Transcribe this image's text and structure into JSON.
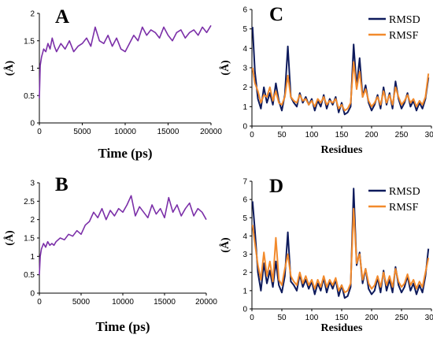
{
  "colors": {
    "purple": "#7b2fa8",
    "navy": "#0d1a5c",
    "orange": "#f28a2c"
  },
  "chart_data": [
    {
      "panel": "A",
      "type": "line",
      "xlabel": "Time (ps)",
      "ylabel": "(Å)",
      "xlim": [
        0,
        20000
      ],
      "ylim": [
        0,
        2
      ],
      "xticks": [
        0,
        5000,
        10000,
        15000,
        20000
      ],
      "yticks": [
        0,
        0.5,
        1,
        1.5,
        2
      ],
      "grid": false,
      "series": [
        {
          "color": "#7b2fa8",
          "x": [
            0,
            100,
            250,
            500,
            750,
            1000,
            1250,
            1500,
            1750,
            2000,
            2500,
            3000,
            3500,
            4000,
            4500,
            5000,
            5500,
            6000,
            6500,
            7000,
            7500,
            8000,
            8500,
            9000,
            9500,
            10000,
            10500,
            11000,
            11500,
            12000,
            12500,
            13000,
            13500,
            14000,
            14500,
            15000,
            15500,
            16000,
            16500,
            17000,
            17500,
            18000,
            18500,
            19000,
            19500,
            20000
          ],
          "y": [
            0.45,
            1.05,
            1.2,
            1.35,
            1.3,
            1.45,
            1.35,
            1.55,
            1.4,
            1.3,
            1.45,
            1.35,
            1.5,
            1.3,
            1.4,
            1.45,
            1.55,
            1.4,
            1.75,
            1.5,
            1.45,
            1.6,
            1.4,
            1.55,
            1.35,
            1.3,
            1.45,
            1.6,
            1.5,
            1.75,
            1.6,
            1.7,
            1.65,
            1.55,
            1.75,
            1.6,
            1.5,
            1.65,
            1.7,
            1.55,
            1.65,
            1.7,
            1.6,
            1.75,
            1.65,
            1.78
          ]
        }
      ]
    },
    {
      "panel": "B",
      "type": "line",
      "xlabel": "Time (ps)",
      "ylabel": "(Å)",
      "xlim": [
        0,
        20000
      ],
      "ylim": [
        0,
        3
      ],
      "xticks": [
        0,
        5000,
        10000,
        15000,
        20000
      ],
      "yticks": [
        0,
        0.5,
        1,
        1.5,
        2,
        2.5,
        3
      ],
      "grid": false,
      "series": [
        {
          "color": "#7b2fa8",
          "x": [
            0,
            100,
            250,
            500,
            750,
            1000,
            1250,
            1500,
            1750,
            2000,
            2500,
            3000,
            3500,
            4000,
            4500,
            5000,
            5500,
            6000,
            6500,
            7000,
            7500,
            8000,
            8500,
            9000,
            9500,
            10000,
            10500,
            11000,
            11500,
            12000,
            12500,
            13000,
            13500,
            14000,
            14500,
            15000,
            15500,
            16000,
            16500,
            17000,
            17500,
            18000,
            18500,
            19000,
            19500,
            20000
          ],
          "y": [
            0.5,
            1.0,
            1.2,
            1.35,
            1.25,
            1.4,
            1.3,
            1.35,
            1.3,
            1.4,
            1.5,
            1.45,
            1.6,
            1.55,
            1.7,
            1.6,
            1.85,
            1.95,
            2.2,
            2.05,
            2.3,
            2.0,
            2.25,
            2.1,
            2.3,
            2.2,
            2.4,
            2.65,
            2.1,
            2.35,
            2.2,
            2.05,
            2.4,
            2.15,
            2.3,
            2.05,
            2.6,
            2.2,
            2.4,
            2.1,
            2.3,
            2.45,
            2.1,
            2.3,
            2.2,
            2.0
          ]
        }
      ]
    },
    {
      "panel": "C",
      "type": "line",
      "xlabel": "Residues",
      "ylabel": "(Å)",
      "xlim": [
        0,
        300
      ],
      "ylim": [
        0,
        6
      ],
      "xticks": [
        0,
        50,
        100,
        150,
        200,
        250,
        300
      ],
      "yticks": [
        0,
        1,
        2,
        3,
        4,
        5,
        6
      ],
      "grid": false,
      "legend": "top-right",
      "series": [
        {
          "name": "RMSD",
          "color": "#0d1a5c",
          "x": [
            1,
            5,
            10,
            15,
            20,
            25,
            30,
            35,
            40,
            45,
            50,
            55,
            60,
            65,
            70,
            75,
            80,
            85,
            90,
            95,
            100,
            105,
            110,
            115,
            120,
            125,
            130,
            135,
            140,
            145,
            150,
            155,
            160,
            165,
            170,
            175,
            180,
            185,
            190,
            195,
            200,
            205,
            210,
            215,
            220,
            225,
            230,
            235,
            240,
            245,
            250,
            255,
            260,
            265,
            270,
            275,
            280,
            285,
            290,
            295
          ],
          "y": [
            5.1,
            2.8,
            1.4,
            0.9,
            2.0,
            1.2,
            1.7,
            1.1,
            2.2,
            1.3,
            0.8,
            1.6,
            4.1,
            1.5,
            1.2,
            1.0,
            1.7,
            1.2,
            1.5,
            1.1,
            1.4,
            0.8,
            1.3,
            1.0,
            1.6,
            0.9,
            1.4,
            1.1,
            1.5,
            0.7,
            1.2,
            0.6,
            0.7,
            1.0,
            4.2,
            2.0,
            3.5,
            1.5,
            2.1,
            1.2,
            0.8,
            1.1,
            1.6,
            0.9,
            2.0,
            1.1,
            1.7,
            0.9,
            2.3,
            1.4,
            0.9,
            1.2,
            1.7,
            1.0,
            1.3,
            0.8,
            1.2,
            0.9,
            1.4,
            2.5
          ]
        },
        {
          "name": "RMSF",
          "color": "#f28a2c",
          "x": [
            1,
            5,
            10,
            15,
            20,
            25,
            30,
            35,
            40,
            45,
            50,
            55,
            60,
            65,
            70,
            75,
            80,
            85,
            90,
            95,
            100,
            105,
            110,
            115,
            120,
            125,
            130,
            135,
            140,
            145,
            150,
            155,
            160,
            165,
            170,
            175,
            180,
            185,
            190,
            195,
            200,
            205,
            210,
            215,
            220,
            225,
            230,
            235,
            240,
            245,
            250,
            255,
            260,
            265,
            270,
            275,
            280,
            285,
            290,
            295
          ],
          "y": [
            3.0,
            2.2,
            1.8,
            1.2,
            1.6,
            1.5,
            2.0,
            1.3,
            1.8,
            1.2,
            1.1,
            1.5,
            2.6,
            1.5,
            1.3,
            1.2,
            1.6,
            1.3,
            1.4,
            1.1,
            1.3,
            1.0,
            1.4,
            1.2,
            1.5,
            1.1,
            1.3,
            1.2,
            1.4,
            0.9,
            1.1,
            0.8,
            0.9,
            1.2,
            3.3,
            1.9,
            2.8,
            1.5,
            1.9,
            1.3,
            1.0,
            1.2,
            1.5,
            1.1,
            1.8,
            1.2,
            1.6,
            1.1,
            2.0,
            1.5,
            1.1,
            1.3,
            1.6,
            1.2,
            1.4,
            1.0,
            1.3,
            1.1,
            1.5,
            2.7
          ]
        }
      ]
    },
    {
      "panel": "D",
      "type": "line",
      "xlabel": "Residues",
      "ylabel": "(Å)",
      "xlim": [
        0,
        300
      ],
      "ylim": [
        0,
        7
      ],
      "xticks": [
        0,
        50,
        100,
        150,
        200,
        250,
        300
      ],
      "yticks": [
        0,
        1,
        2,
        3,
        4,
        5,
        6,
        7
      ],
      "grid": false,
      "legend": "top-right",
      "series": [
        {
          "name": "RMSD",
          "color": "#0d1a5c",
          "x": [
            1,
            5,
            10,
            15,
            20,
            25,
            30,
            35,
            40,
            45,
            50,
            55,
            60,
            65,
            70,
            75,
            80,
            85,
            90,
            95,
            100,
            105,
            110,
            115,
            120,
            125,
            130,
            135,
            140,
            145,
            150,
            155,
            160,
            165,
            170,
            175,
            180,
            185,
            190,
            195,
            200,
            205,
            210,
            215,
            220,
            225,
            230,
            235,
            240,
            245,
            250,
            255,
            260,
            265,
            270,
            275,
            280,
            285,
            290,
            295
          ],
          "y": [
            5.9,
            4.3,
            2.0,
            1.0,
            2.5,
            1.4,
            2.1,
            1.2,
            2.6,
            1.3,
            0.9,
            1.8,
            4.2,
            1.5,
            1.3,
            1.0,
            1.9,
            1.2,
            1.6,
            1.1,
            1.5,
            0.8,
            1.4,
            1.0,
            1.7,
            0.9,
            1.5,
            1.1,
            1.6,
            0.7,
            1.3,
            0.6,
            0.7,
            1.2,
            6.6,
            2.4,
            3.1,
            1.4,
            2.2,
            1.1,
            0.8,
            1.0,
            1.7,
            0.9,
            2.1,
            1.0,
            1.6,
            0.9,
            2.3,
            1.3,
            0.9,
            1.2,
            1.8,
            1.0,
            1.4,
            0.8,
            1.3,
            0.9,
            1.8,
            3.3
          ]
        },
        {
          "name": "RMSF",
          "color": "#f28a2c",
          "x": [
            1,
            5,
            10,
            15,
            20,
            25,
            30,
            35,
            40,
            45,
            50,
            55,
            60,
            65,
            70,
            75,
            80,
            85,
            90,
            95,
            100,
            105,
            110,
            115,
            120,
            125,
            130,
            135,
            140,
            145,
            150,
            155,
            160,
            165,
            170,
            175,
            180,
            185,
            190,
            195,
            200,
            205,
            210,
            215,
            220,
            225,
            230,
            235,
            240,
            245,
            250,
            255,
            260,
            265,
            270,
            275,
            280,
            285,
            290,
            295
          ],
          "y": [
            4.6,
            3.6,
            2.4,
            1.6,
            3.1,
            1.8,
            2.6,
            1.5,
            3.9,
            1.6,
            1.3,
            2.2,
            3.0,
            1.8,
            1.5,
            1.3,
            2.0,
            1.4,
            1.8,
            1.3,
            1.6,
            1.1,
            1.6,
            1.2,
            1.8,
            1.2,
            1.6,
            1.3,
            1.7,
            1.0,
            1.3,
            0.9,
            1.0,
            1.4,
            5.5,
            2.5,
            3.0,
            1.6,
            2.2,
            1.4,
            1.1,
            1.3,
            1.8,
            1.2,
            2.0,
            1.3,
            1.8,
            1.2,
            2.2,
            1.5,
            1.2,
            1.4,
            1.9,
            1.3,
            1.6,
            1.1,
            1.5,
            1.2,
            2.0,
            2.8
          ]
        }
      ]
    }
  ]
}
